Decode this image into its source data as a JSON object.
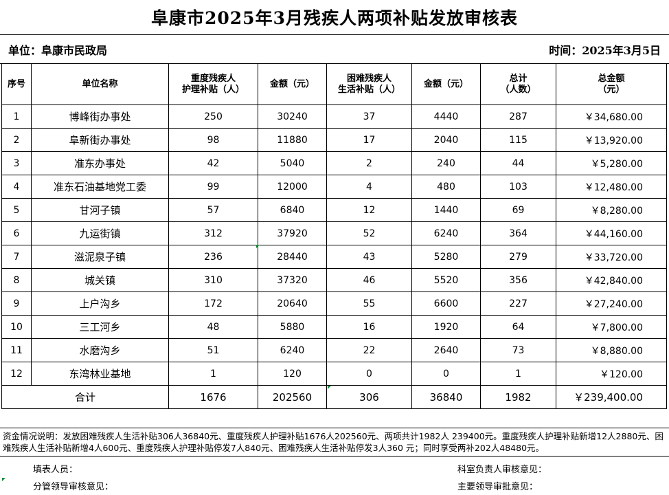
{
  "title": "阜康市2025年3月残疾人两项补贴发放审核表",
  "unit_label": "单位：阜康市民政局",
  "date_label": "时间：2025年3月5日",
  "headers": {
    "seq": "序号",
    "unit_name": "单位名称",
    "severe_count_l1": "重度残疾人",
    "severe_count_l2": "护理补贴（人）",
    "amount1": "金额（元）",
    "poor_count_l1": "困难残疾人",
    "poor_count_l2": "生活补贴（人）",
    "amount2": "金额（元）",
    "total_l1": "总计",
    "total_l2": "（人数）",
    "total_amount_l1": "总金额",
    "total_amount_l2": "（元）"
  },
  "rows": [
    {
      "seq": "1",
      "name": "博峰街办事处",
      "severe": "250",
      "amt1": "30240",
      "poor": "37",
      "amt2": "4440",
      "total": "287",
      "total_amt": "￥34,680.00"
    },
    {
      "seq": "2",
      "name": "阜新街办事处",
      "severe": "98",
      "amt1": "11880",
      "poor": "17",
      "amt2": "2040",
      "total": "115",
      "total_amt": "￥13,920.00"
    },
    {
      "seq": "3",
      "name": "准东办事处",
      "severe": "42",
      "amt1": "5040",
      "poor": "2",
      "amt2": "240",
      "total": "44",
      "total_amt": "￥5,280.00"
    },
    {
      "seq": "4",
      "name": "准东石油基地党工委",
      "severe": "99",
      "amt1": "12000",
      "poor": "4",
      "amt2": "480",
      "total": "103",
      "total_amt": "￥12,480.00"
    },
    {
      "seq": "5",
      "name": "甘河子镇",
      "severe": "57",
      "amt1": "6840",
      "poor": "12",
      "amt2": "1440",
      "total": "69",
      "total_amt": "￥8,280.00"
    },
    {
      "seq": "6",
      "name": "九运街镇",
      "severe": "312",
      "amt1": "37920",
      "poor": "52",
      "amt2": "6240",
      "total": "364",
      "total_amt": "￥44,160.00"
    },
    {
      "seq": "7",
      "name": "滋泥泉子镇",
      "severe": "236",
      "amt1": "28440",
      "poor": "43",
      "amt2": "5280",
      "total": "279",
      "total_amt": "￥33,720.00"
    },
    {
      "seq": "8",
      "name": "城关镇",
      "severe": "310",
      "amt1": "37320",
      "poor": "46",
      "amt2": "5520",
      "total": "356",
      "total_amt": "￥42,840.00"
    },
    {
      "seq": "9",
      "name": "上户沟乡",
      "severe": "172",
      "amt1": "20640",
      "poor": "55",
      "amt2": "6600",
      "total": "227",
      "total_amt": "￥27,240.00"
    },
    {
      "seq": "10",
      "name": "三工河乡",
      "severe": "48",
      "amt1": "5880",
      "poor": "16",
      "amt2": "1920",
      "total": "64",
      "total_amt": "￥7,800.00"
    },
    {
      "seq": "11",
      "name": "水磨沟乡",
      "severe": "51",
      "amt1": "6240",
      "poor": "22",
      "amt2": "2640",
      "total": "73",
      "total_amt": "￥8,880.00"
    },
    {
      "seq": "12",
      "name": "东湾林业基地",
      "severe": "1",
      "amt1": "120",
      "poor": "0",
      "amt2": "0",
      "total": "1",
      "total_amt": "￥120.00"
    }
  ],
  "totals": {
    "label": "合计",
    "severe": "1676",
    "amt1": "202560",
    "poor": "306",
    "amt2": "36840",
    "total": "1982",
    "total_amt": "￥239,400.00"
  },
  "note": "资金情况说明：发放困难残疾人生活补贴306人36840元、重度残疾人护理补贴1676人202560元、两项共计1982人 239400元。重度残疾人护理补贴新增12人2880元、困难残疾人生活补贴新增4人600元、重度残疾人护理补贴停发7人840元、困难残疾人生活补贴停发3人360 元；同时享受两补202人48480元。",
  "signatures": {
    "filler": "填表人员：",
    "section_chief": "科室负责人审核意见：",
    "leader_review": "分管领导审核意见：",
    "main_leader": "主要领导审批意见："
  }
}
